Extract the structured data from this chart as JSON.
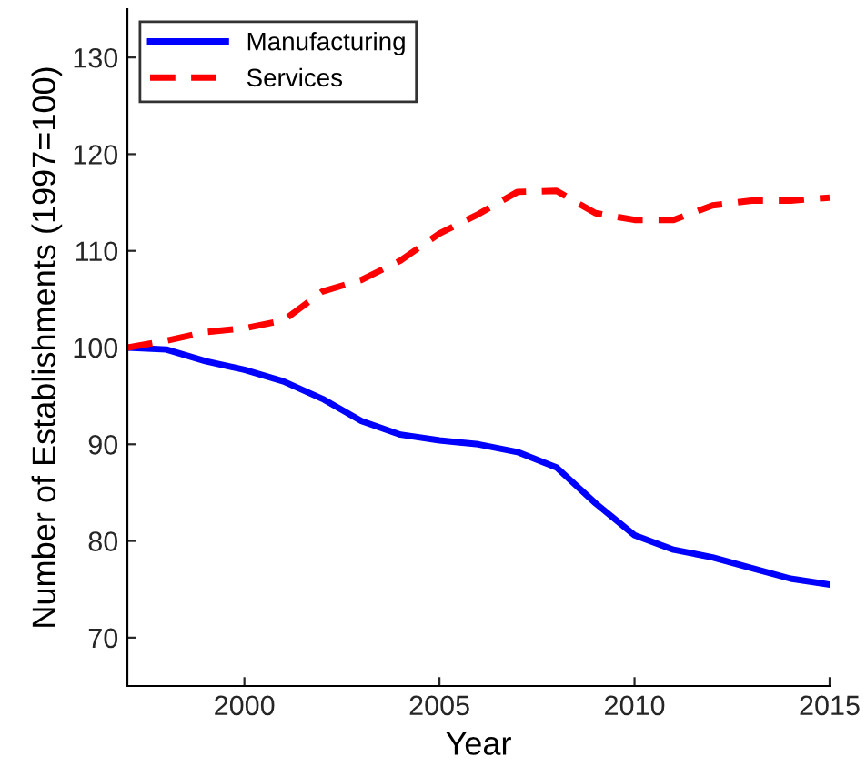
{
  "chart_data": {
    "type": "line",
    "xlabel": "Year",
    "ylabel": "Number of Establishments (1997=100)",
    "x": [
      1997,
      1998,
      1999,
      2000,
      2001,
      2002,
      2003,
      2004,
      2005,
      2006,
      2007,
      2008,
      2009,
      2010,
      2011,
      2012,
      2013,
      2014,
      2015
    ],
    "series": [
      {
        "name": "Manufacturing",
        "color": "#0000ff",
        "line_style": "solid",
        "values": [
          100,
          99.8,
          98.6,
          97.7,
          96.5,
          94.7,
          92.4,
          91.0,
          90.4,
          90.0,
          89.2,
          87.6,
          83.9,
          80.6,
          79.1,
          78.3,
          77.2,
          76.1,
          75.5
        ]
      },
      {
        "name": "Services",
        "color": "#ff0000",
        "line_style": "dashed",
        "values": [
          100,
          100.7,
          101.6,
          102.0,
          102.8,
          105.8,
          107.0,
          109.0,
          111.8,
          113.8,
          116.1,
          116.2,
          113.9,
          113.2,
          113.2,
          114.7,
          115.2,
          115.2,
          115.5
        ]
      }
    ],
    "xlim": [
      1997,
      2015
    ],
    "xticks": [
      2000,
      2005,
      2010,
      2015
    ],
    "ylim": [
      65,
      135
    ],
    "yticks": [
      70,
      80,
      90,
      100,
      110,
      120,
      130
    ],
    "grid": false,
    "legend": "top left"
  }
}
